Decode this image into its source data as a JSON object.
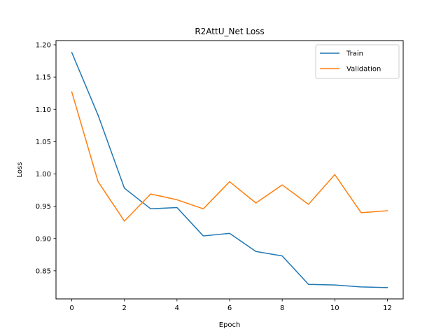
{
  "chart_data": {
    "type": "line",
    "title": "R2AttU_Net Loss",
    "xlabel": "Epoch",
    "ylabel": "Loss",
    "x": [
      0,
      1,
      2,
      3,
      4,
      5,
      6,
      7,
      8,
      9,
      10,
      11,
      12
    ],
    "xlim": [
      -0.6,
      12.6
    ],
    "ylim": [
      0.8065,
      1.2065
    ],
    "xticks": [
      0,
      2,
      4,
      6,
      8,
      10,
      12
    ],
    "xtick_labels": [
      "0",
      "2",
      "4",
      "6",
      "8",
      "10",
      "12"
    ],
    "yticks": [
      0.85,
      0.9,
      0.95,
      1.0,
      1.05,
      1.1,
      1.15,
      1.2
    ],
    "ytick_labels": [
      "0.85",
      "0.90",
      "0.95",
      "1.00",
      "1.05",
      "1.10",
      "1.15",
      "1.20"
    ],
    "grid": false,
    "legend_position": "top-right",
    "series": [
      {
        "name": "Train",
        "color": "#1f77b4",
        "values": [
          1.188,
          1.091,
          0.978,
          0.946,
          0.948,
          0.904,
          0.908,
          0.88,
          0.873,
          0.829,
          0.828,
          0.825,
          0.824
        ]
      },
      {
        "name": "Validation",
        "color": "#ff7f0e",
        "values": [
          1.127,
          0.988,
          0.927,
          0.969,
          0.96,
          0.946,
          0.988,
          0.955,
          0.983,
          0.953,
          0.999,
          0.94,
          0.943
        ]
      }
    ]
  }
}
